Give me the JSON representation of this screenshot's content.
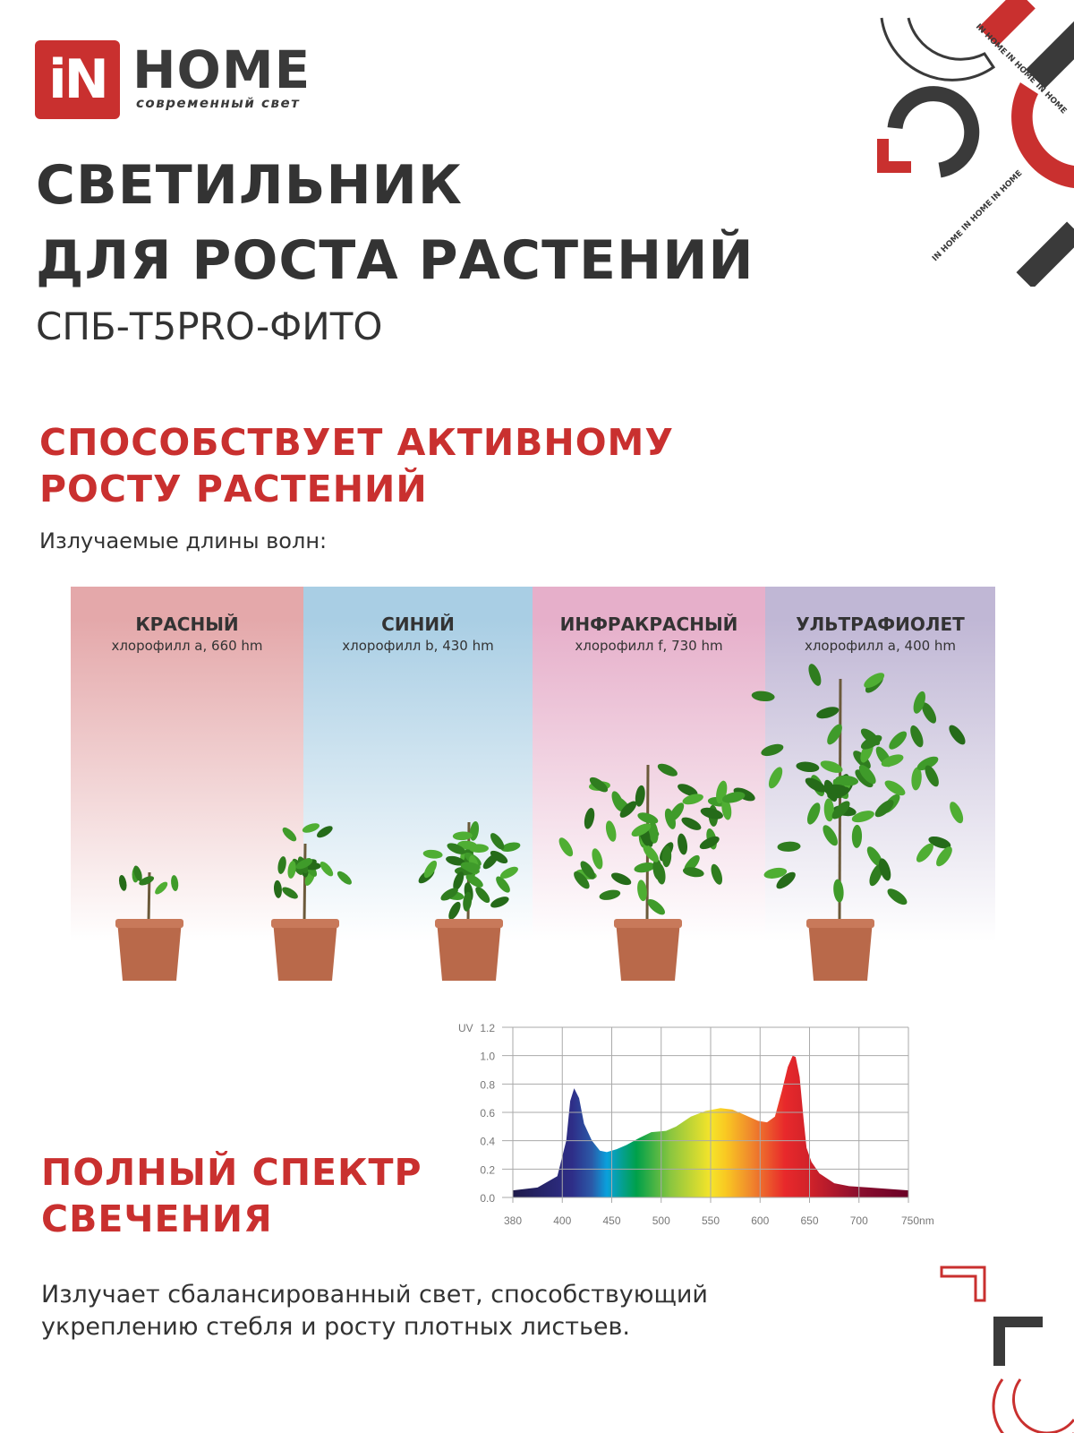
{
  "brand": {
    "logo_in": "iN",
    "logo_home": "HOME",
    "tagline": "современный свет",
    "pattern_text": "IN HOME",
    "red": "#c9302f",
    "dark": "#3a3a3a"
  },
  "title": {
    "line1": "СВЕТИЛЬНИК",
    "line2": "ДЛЯ РОСТА РАСТЕНИЙ",
    "model": "СПБ-T5PRO-ФИТО"
  },
  "section1": {
    "heading_line1": "СПОСОБСТВУЕТ АКТИВНОМУ",
    "heading_line2": "РОСТУ РАСТЕНИЙ",
    "caption": "Излучаемые длины волн:"
  },
  "wavelengths": [
    {
      "name": "КРАСНЫЙ",
      "detail": "хлорофилл a, 660 hm",
      "color": "#e4a8aa"
    },
    {
      "name": "СИНИЙ",
      "detail": "хлорофилл b, 430 hm",
      "color": "#a9cee4"
    },
    {
      "name": "ИНФРАКРАСНЫЙ",
      "detail": "хлорофилл f, 730 hm",
      "color": "#e6afca"
    },
    {
      "name": "УЛЬТРАФИОЛЕТ",
      "detail": "хлорофилл a, 400 hm",
      "color": "#c0b7d5"
    }
  ],
  "section2": {
    "heading_line1": "ПОЛНЫЙ СПЕКТР",
    "heading_line2": "СВЕЧЕНИЯ",
    "text_line1": "Излучает сбалансированный свет, способствующий",
    "text_line2": "укреплению стебля и росту плотных листьев."
  },
  "chart_data": {
    "type": "area",
    "ylabel": "UV",
    "ylim": [
      0,
      1.2
    ],
    "yticks": [
      "0.0",
      "0.2",
      "0.4",
      "0.6",
      "0.8",
      "1.0",
      "1.2"
    ],
    "xticks": [
      "380",
      "400",
      "450",
      "500",
      "550",
      "600",
      "650",
      "700",
      "750nm"
    ],
    "xtick_values": [
      380,
      400,
      450,
      500,
      550,
      600,
      650,
      700,
      750
    ],
    "grid": true,
    "x": [
      380,
      390,
      398,
      404,
      408,
      412,
      417,
      422,
      430,
      438,
      445,
      455,
      465,
      478,
      490,
      505,
      515,
      530,
      545,
      560,
      572,
      585,
      598,
      607,
      615,
      622,
      628,
      633,
      636,
      640,
      644,
      647,
      652,
      660,
      675,
      690,
      710,
      750
    ],
    "y": [
      0.05,
      0.07,
      0.15,
      0.4,
      0.68,
      0.77,
      0.7,
      0.52,
      0.4,
      0.33,
      0.32,
      0.34,
      0.37,
      0.42,
      0.46,
      0.47,
      0.5,
      0.57,
      0.61,
      0.63,
      0.62,
      0.58,
      0.54,
      0.53,
      0.57,
      0.75,
      0.92,
      1.0,
      0.99,
      0.85,
      0.55,
      0.35,
      0.25,
      0.17,
      0.1,
      0.08,
      0.07,
      0.05
    ]
  }
}
